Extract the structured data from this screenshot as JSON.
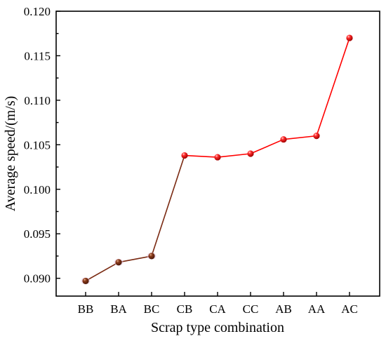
{
  "chart_data": {
    "type": "line",
    "categories": [
      "BB",
      "BA",
      "BC",
      "CB",
      "CA",
      "CC",
      "AB",
      "AA",
      "AC"
    ],
    "series": [
      {
        "values": [
          0.0897,
          0.0918,
          0.0925,
          0.1038,
          0.1036,
          0.104,
          0.1056,
          0.106,
          0.117
        ],
        "color": "#ff0000",
        "segment_colors": [
          "#7a2a12",
          "#7a2a12",
          "#7a2a12",
          "#ff0000",
          "#ff0000",
          "#ff0000",
          "#ff0000",
          "#ff0000"
        ],
        "marker_colors": [
          "#8b3a1a",
          "#8b3a1a",
          "#8b3a1a",
          "#ff0000",
          "#ff0000",
          "#ff0000",
          "#ff0000",
          "#ff0000",
          "#ff0000"
        ]
      }
    ],
    "title": "",
    "xlabel": "Scrap type combination",
    "ylabel": "Average speed/(m/s)",
    "ylim": [
      0.088,
      0.12
    ],
    "yticks": [
      0.09,
      0.095,
      0.1,
      0.105,
      0.11,
      0.115,
      0.12
    ],
    "ytick_labels": [
      "0.090",
      "0.095",
      "0.100",
      "0.105",
      "0.110",
      "0.115",
      "0.120"
    ],
    "grid": false,
    "legend": "none"
  }
}
